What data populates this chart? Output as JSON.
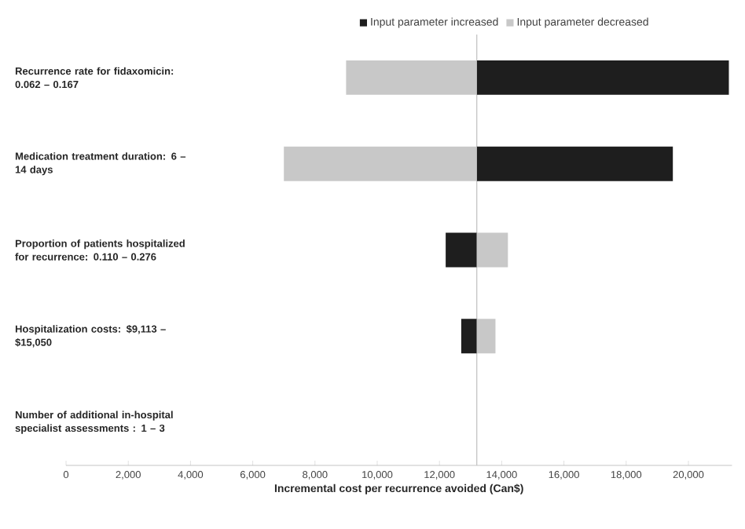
{
  "chart_data": {
    "type": "bar",
    "orientation": "horizontal",
    "xlabel": "Incremental cost per recurrence avoided (Can$)",
    "categories": [
      "Recurrence rate for fidaxomicin: 0.062 – 0.167",
      "Medication treatment duration: 6  – 14 days",
      "Proportion of patients hospitalized for recurrence:  0.110 – 0.276",
      "Hospitalization costs: $9,113 – $15,050",
      "Number of additional in-hospital specialist assessments : 1 – 3"
    ],
    "series": [
      {
        "name": "Input parameter increased",
        "color": "#1e1e1e",
        "base": [
          13200,
          13200,
          12200,
          12700,
          null
        ],
        "values": [
          8100,
          6300,
          1000,
          500,
          null
        ]
      },
      {
        "name": "Input parameter decreased",
        "color": "#c8c8c8",
        "base": [
          9000,
          7000,
          13200,
          13200,
          null
        ],
        "values": [
          4200,
          6200,
          1000,
          600,
          null
        ]
      }
    ],
    "xlim": [
      0,
      21400
    ],
    "xticks": [
      0,
      {
        "value": 2000,
        "label": "2,000"
      },
      {
        "value": 4000,
        "label": "4,000"
      },
      {
        "value": 6000,
        "label": "6,000"
      },
      {
        "value": 8000,
        "label": "8,000"
      },
      {
        "value": 10000,
        "label": "10,000"
      },
      {
        "value": 12000,
        "label": "12,000"
      },
      {
        "value": 14000,
        "label": "14,000"
      },
      {
        "value": 16000,
        "label": "16,000"
      },
      {
        "value": 18000,
        "label": "18,000"
      },
      {
        "value": 20000,
        "label": "20,000"
      }
    ],
    "ref_lines": [
      {
        "axis": "x",
        "value": 13200,
        "color": "#c0c0c0"
      }
    ],
    "legend": "top",
    "grid": false
  }
}
